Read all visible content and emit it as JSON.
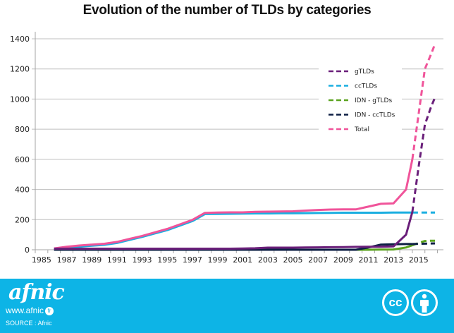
{
  "chart_data": {
    "type": "line",
    "title": "Evolution of the number of TLDs by categories",
    "xlabel": "",
    "ylabel": "",
    "ylim": [
      0,
      1400
    ],
    "yticks": [
      0,
      200,
      400,
      600,
      800,
      1000,
      1200,
      1400
    ],
    "xcategories": [
      1985,
      1986,
      1987,
      1988,
      1989,
      1990,
      1991,
      1992,
      1993,
      1994,
      1995,
      1996,
      1997,
      1998,
      1999,
      2000,
      2001,
      2002,
      2003,
      2004,
      2005,
      2006,
      2007,
      2008,
      2009,
      2010,
      2011,
      2012,
      2013,
      2014,
      2015,
      2016
    ],
    "xtick_labels": [
      "1985",
      "1987",
      "1989",
      "1991",
      "1993",
      "1995",
      "1997",
      "1999",
      "2001",
      "2003",
      "2005",
      "2007",
      "2009",
      "2011",
      "2013",
      "2015"
    ],
    "grid": "horizontal",
    "legend_position": "top-right",
    "series": [
      {
        "name": "gTLDs",
        "color": "#6a1f7a",
        "x": [
          1986,
          1987,
          1988,
          1989,
          1990,
          1991,
          1992,
          1993,
          1994,
          1995,
          1996,
          1997,
          1998,
          1999,
          2000,
          2001,
          2002,
          2003,
          2004,
          2005,
          2006,
          2007,
          2008,
          2009,
          2010,
          2011,
          2012,
          2013,
          2014,
          2014.5
        ],
        "y": [
          7,
          7,
          7,
          7,
          7,
          7,
          7,
          7,
          7,
          7,
          7,
          7,
          7,
          7,
          7,
          8,
          10,
          14,
          14,
          14,
          15,
          16,
          17,
          18,
          19,
          20,
          20,
          22,
          100,
          250
        ],
        "projection": {
          "x": [
            2014.5,
            2015,
            2015.5,
            2016,
            2016.3
          ],
          "y": [
            250,
            550,
            830,
            950,
            1010
          ]
        }
      },
      {
        "name": "ccTLDs",
        "color": "#1aaee0",
        "x": [
          1986,
          1987,
          1988,
          1989,
          1990,
          1991,
          1992,
          1993,
          1994,
          1995,
          1996,
          1997,
          1998,
          1999,
          2000,
          2001,
          2002,
          2003,
          2004,
          2005,
          2006,
          2007,
          2008,
          2009,
          2010,
          2011,
          2012,
          2013,
          2014,
          2014.5
        ],
        "y": [
          2,
          12,
          20,
          27,
          33,
          45,
          65,
          85,
          108,
          130,
          160,
          190,
          237,
          238,
          239,
          240,
          241,
          241,
          242,
          242,
          243,
          244,
          245,
          246,
          246,
          246,
          246,
          247,
          247,
          247
        ],
        "projection": {
          "x": [
            2014.5,
            2016.3
          ],
          "y": [
            247,
            247
          ]
        }
      },
      {
        "name": "IDN - gTLDs",
        "color": "#5aa31e",
        "x": [
          2010,
          2011,
          2012,
          2013,
          2014,
          2014.5
        ],
        "y": [
          0,
          0,
          1,
          2,
          15,
          30
        ],
        "projection": {
          "x": [
            2014.5,
            2015,
            2015.5,
            2016,
            2016.3
          ],
          "y": [
            30,
            45,
            58,
            60,
            60
          ]
        }
      },
      {
        "name": "IDN  - ccTLDs",
        "color": "#0d1f44",
        "x": [
          1986,
          2009,
          2010,
          2011,
          2012,
          2013,
          2014,
          2014.5
        ],
        "y": [
          0,
          0,
          0,
          15,
          34,
          36,
          38,
          38
        ],
        "projection": {
          "x": [
            2014.5,
            2016.3
          ],
          "y": [
            38,
            42
          ]
        }
      },
      {
        "name": "Total",
        "color": "#f0549a",
        "x": [
          1986,
          1987,
          1988,
          1989,
          1990,
          1991,
          1992,
          1993,
          1994,
          1995,
          1996,
          1997,
          1998,
          1999,
          2000,
          2001,
          2002,
          2003,
          2004,
          2005,
          2006,
          2007,
          2008,
          2009,
          2010,
          2011,
          2012,
          2013,
          2014,
          2014.5
        ],
        "y": [
          9,
          20,
          28,
          34,
          40,
          52,
          72,
          92,
          115,
          138,
          168,
          198,
          245,
          247,
          248,
          248,
          252,
          253,
          254,
          255,
          260,
          264,
          267,
          268,
          268,
          286,
          305,
          308,
          400,
          600
        ],
        "projection": {
          "x": [
            2014.5,
            2015,
            2015.5,
            2016,
            2016.3
          ],
          "y": [
            600,
            900,
            1200,
            1300,
            1365
          ]
        }
      }
    ]
  },
  "footer": {
    "logo_text": "afnic",
    "url": "www.afnic",
    "url_badge": "fr",
    "source": "SOURCE :  Afnic",
    "license_cc": "cc"
  }
}
